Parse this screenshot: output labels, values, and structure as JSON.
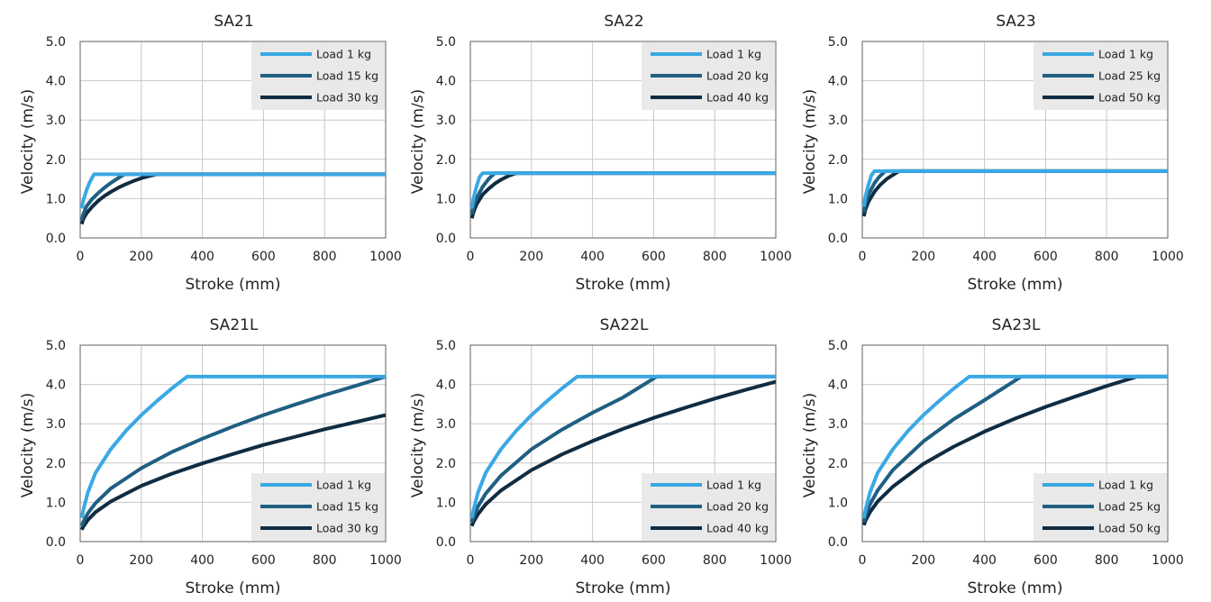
{
  "chart_data": [
    {
      "type": "line",
      "title": "SA21",
      "xlabel": "Stroke (mm)",
      "ylabel": "Velocity (m/s)",
      "xlim": [
        0,
        1000
      ],
      "ylim": [
        0,
        5
      ],
      "xticks": [
        "0",
        "200",
        "400",
        "600",
        "800",
        "1000"
      ],
      "yticks": [
        "0.0",
        "1.0",
        "2.0",
        "3.0",
        "4.0",
        "5.0"
      ],
      "grid": true,
      "legend_position": "top-right",
      "series": [
        {
          "name": "Load 1 kg",
          "color": "#3aa8e4",
          "x": [
            5,
            10,
            20,
            30,
            45,
            55,
            1000
          ],
          "y": [
            0.75,
            0.95,
            1.2,
            1.4,
            1.62,
            1.62,
            1.62
          ]
        },
        {
          "name": "Load 15 kg",
          "color": "#1f5f82",
          "x": [
            5,
            10,
            20,
            40,
            60,
            80,
            100,
            120,
            145,
            1000
          ],
          "y": [
            0.45,
            0.6,
            0.8,
            1.0,
            1.15,
            1.28,
            1.4,
            1.5,
            1.62,
            1.62
          ]
        },
        {
          "name": "Load 30 kg",
          "color": "#0f2c42",
          "x": [
            5,
            10,
            20,
            40,
            60,
            80,
            100,
            125,
            150,
            175,
            200,
            225,
            250,
            1000
          ],
          "y": [
            0.35,
            0.48,
            0.62,
            0.8,
            0.95,
            1.07,
            1.17,
            1.28,
            1.37,
            1.45,
            1.52,
            1.57,
            1.62,
            1.62
          ]
        }
      ]
    },
    {
      "type": "line",
      "title": "SA22",
      "xlabel": "Stroke (mm)",
      "ylabel": "Velocity (m/s)",
      "xlim": [
        0,
        1000
      ],
      "ylim": [
        0,
        5
      ],
      "xticks": [
        "0",
        "200",
        "400",
        "600",
        "800",
        "1000"
      ],
      "yticks": [
        "0.0",
        "1.0",
        "2.0",
        "3.0",
        "4.0",
        "5.0"
      ],
      "grid": true,
      "legend_position": "top-right",
      "series": [
        {
          "name": "Load 1 kg",
          "color": "#3aa8e4",
          "x": [
            5,
            10,
            20,
            30,
            40,
            1000
          ],
          "y": [
            0.75,
            1.0,
            1.3,
            1.55,
            1.65,
            1.65
          ]
        },
        {
          "name": "Load 20 kg",
          "color": "#1f5f82",
          "x": [
            5,
            10,
            20,
            40,
            60,
            80,
            1000
          ],
          "y": [
            0.6,
            0.8,
            1.0,
            1.3,
            1.5,
            1.65,
            1.65
          ]
        },
        {
          "name": "Load 40 kg",
          "color": "#0f2c42",
          "x": [
            5,
            10,
            20,
            40,
            60,
            80,
            100,
            125,
            150,
            1000
          ],
          "y": [
            0.5,
            0.65,
            0.85,
            1.1,
            1.25,
            1.38,
            1.48,
            1.58,
            1.65,
            1.65
          ]
        }
      ]
    },
    {
      "type": "line",
      "title": "SA23",
      "xlabel": "Stroke (mm)",
      "ylabel": "Velocity (m/s)",
      "xlim": [
        0,
        1000
      ],
      "ylim": [
        0,
        5
      ],
      "xticks": [
        "0",
        "200",
        "400",
        "600",
        "800",
        "1000"
      ],
      "yticks": [
        "0.0",
        "1.0",
        "2.0",
        "3.0",
        "4.0",
        "5.0"
      ],
      "grid": true,
      "legend_position": "top-right",
      "series": [
        {
          "name": "Load 1 kg",
          "color": "#3aa8e4",
          "x": [
            5,
            10,
            20,
            30,
            40,
            1000
          ],
          "y": [
            0.8,
            1.05,
            1.35,
            1.6,
            1.7,
            1.7
          ]
        },
        {
          "name": "Load 25 kg",
          "color": "#1f5f82",
          "x": [
            5,
            10,
            20,
            40,
            55,
            75,
            1000
          ],
          "y": [
            0.65,
            0.85,
            1.1,
            1.4,
            1.55,
            1.7,
            1.7
          ]
        },
        {
          "name": "Load 50 kg",
          "color": "#0f2c42",
          "x": [
            5,
            10,
            20,
            40,
            60,
            80,
            100,
            120,
            1000
          ],
          "y": [
            0.55,
            0.72,
            0.92,
            1.18,
            1.36,
            1.5,
            1.6,
            1.7,
            1.7
          ]
        }
      ]
    },
    {
      "type": "line",
      "title": "SA21L",
      "xlabel": "Stroke (mm)",
      "ylabel": "Velocity (m/s)",
      "xlim": [
        0,
        1000
      ],
      "ylim": [
        0,
        5
      ],
      "xticks": [
        "0",
        "200",
        "400",
        "600",
        "800",
        "1000"
      ],
      "yticks": [
        "0.0",
        "1.0",
        "2.0",
        "3.0",
        "4.0",
        "5.0"
      ],
      "grid": true,
      "legend_position": "bottom-right",
      "series": [
        {
          "name": "Load 1 kg",
          "color": "#3aa8e4",
          "x": [
            5,
            10,
            25,
            50,
            100,
            150,
            200,
            250,
            300,
            350,
            1000
          ],
          "y": [
            0.6,
            0.8,
            1.25,
            1.75,
            2.35,
            2.82,
            3.22,
            3.57,
            3.9,
            4.2,
            4.2
          ]
        },
        {
          "name": "Load 15 kg",
          "color": "#1f5f82",
          "x": [
            5,
            10,
            25,
            50,
            100,
            200,
            300,
            400,
            500,
            600,
            700,
            800,
            900,
            1000
          ],
          "y": [
            0.4,
            0.5,
            0.72,
            0.98,
            1.35,
            1.87,
            2.28,
            2.62,
            2.93,
            3.22,
            3.48,
            3.73,
            3.96,
            4.2
          ]
        },
        {
          "name": "Load 30 kg",
          "color": "#0f2c42",
          "x": [
            5,
            10,
            25,
            50,
            100,
            200,
            300,
            400,
            500,
            600,
            700,
            800,
            900,
            1000
          ],
          "y": [
            0.3,
            0.38,
            0.55,
            0.75,
            1.02,
            1.42,
            1.73,
            1.99,
            2.23,
            2.46,
            2.66,
            2.86,
            3.04,
            3.22
          ]
        }
      ]
    },
    {
      "type": "line",
      "title": "SA22L",
      "xlabel": "Stroke (mm)",
      "ylabel": "Velocity (m/s)",
      "xlim": [
        0,
        1000
      ],
      "ylim": [
        0,
        5
      ],
      "xticks": [
        "0",
        "200",
        "400",
        "600",
        "800",
        "1000"
      ],
      "yticks": [
        "0.0",
        "1.0",
        "2.0",
        "3.0",
        "4.0",
        "5.0"
      ],
      "grid": true,
      "legend_position": "bottom-right",
      "series": [
        {
          "name": "Load 1 kg",
          "color": "#3aa8e4",
          "x": [
            5,
            10,
            25,
            50,
            100,
            150,
            200,
            250,
            300,
            350,
            1000
          ],
          "y": [
            0.6,
            0.8,
            1.25,
            1.75,
            2.35,
            2.82,
            3.22,
            3.57,
            3.9,
            4.2,
            4.2
          ]
        },
        {
          "name": "Load 20 kg",
          "color": "#1f5f82",
          "x": [
            5,
            10,
            25,
            50,
            100,
            200,
            300,
            400,
            500,
            610,
            1000
          ],
          "y": [
            0.5,
            0.62,
            0.9,
            1.22,
            1.68,
            2.35,
            2.85,
            3.28,
            3.67,
            4.2,
            4.2
          ]
        },
        {
          "name": "Load 40 kg",
          "color": "#0f2c42",
          "x": [
            5,
            10,
            25,
            50,
            100,
            200,
            300,
            400,
            500,
            600,
            700,
            800,
            900,
            1000
          ],
          "y": [
            0.4,
            0.5,
            0.7,
            0.95,
            1.3,
            1.82,
            2.22,
            2.56,
            2.87,
            3.15,
            3.4,
            3.64,
            3.86,
            4.07
          ]
        }
      ]
    },
    {
      "type": "line",
      "title": "SA23L",
      "xlabel": "Stroke (mm)",
      "ylabel": "Velocity (m/s)",
      "xlim": [
        0,
        1000
      ],
      "ylim": [
        0,
        5
      ],
      "xticks": [
        "0",
        "200",
        "400",
        "600",
        "800",
        "1000"
      ],
      "yticks": [
        "0.0",
        "1.0",
        "2.0",
        "3.0",
        "4.0",
        "5.0"
      ],
      "grid": true,
      "legend_position": "bottom-right",
      "series": [
        {
          "name": "Load 1 kg",
          "color": "#3aa8e4",
          "x": [
            5,
            10,
            25,
            50,
            100,
            150,
            200,
            250,
            300,
            350,
            1000
          ],
          "y": [
            0.6,
            0.8,
            1.25,
            1.75,
            2.35,
            2.82,
            3.22,
            3.57,
            3.9,
            4.2,
            4.2
          ]
        },
        {
          "name": "Load 25 kg",
          "color": "#1f5f82",
          "x": [
            5,
            10,
            25,
            50,
            100,
            200,
            300,
            400,
            520,
            1000
          ],
          "y": [
            0.5,
            0.65,
            0.95,
            1.3,
            1.82,
            2.55,
            3.12,
            3.6,
            4.2,
            4.2
          ]
        },
        {
          "name": "Load 50 kg",
          "color": "#0f2c42",
          "x": [
            5,
            10,
            25,
            50,
            100,
            200,
            300,
            400,
            500,
            600,
            700,
            800,
            900,
            1000
          ],
          "y": [
            0.42,
            0.53,
            0.75,
            1.02,
            1.4,
            1.98,
            2.42,
            2.8,
            3.13,
            3.43,
            3.7,
            3.96,
            4.2,
            4.2
          ]
        }
      ]
    }
  ]
}
